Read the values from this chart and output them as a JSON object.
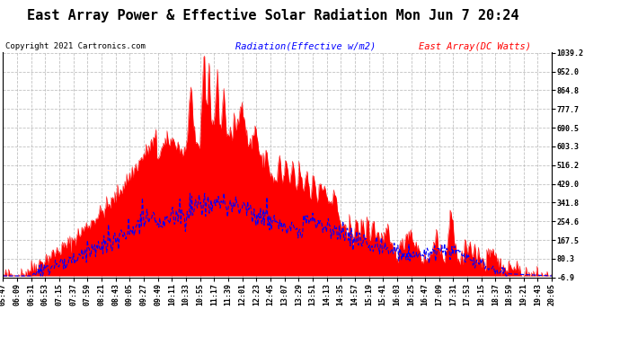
{
  "title": "East Array Power & Effective Solar Radiation Mon Jun 7 20:24",
  "copyright": "Copyright 2021 Cartronics.com",
  "legend_radiation": "Radiation(Effective w/m2)",
  "legend_east": "East Array(DC Watts)",
  "background_color": "#ffffff",
  "plot_bg_color": "#ffffff",
  "grid_color": "#bbbbbb",
  "radiation_color": "#0000ff",
  "east_array_color": "#ff0000",
  "east_array_fill": "#ff0000",
  "ymin": -6.9,
  "ymax": 1039.2,
  "yticks": [
    1039.2,
    952.0,
    864.8,
    777.7,
    690.5,
    603.3,
    516.2,
    429.0,
    341.8,
    254.6,
    167.5,
    80.3,
    -6.9
  ],
  "title_fontsize": 11,
  "copyright_fontsize": 6.5,
  "legend_fontsize": 7.5,
  "tick_fontsize": 6,
  "x_tick_labels": [
    "05:47",
    "06:09",
    "06:31",
    "06:53",
    "07:15",
    "07:37",
    "07:59",
    "08:21",
    "08:43",
    "09:05",
    "09:27",
    "09:49",
    "10:11",
    "10:33",
    "10:55",
    "11:17",
    "11:39",
    "12:01",
    "12:23",
    "12:45",
    "13:07",
    "13:29",
    "13:51",
    "14:13",
    "14:35",
    "14:57",
    "15:19",
    "15:41",
    "16:03",
    "16:25",
    "16:47",
    "17:09",
    "17:31",
    "17:53",
    "18:15",
    "18:37",
    "18:59",
    "19:21",
    "19:43",
    "20:05"
  ]
}
